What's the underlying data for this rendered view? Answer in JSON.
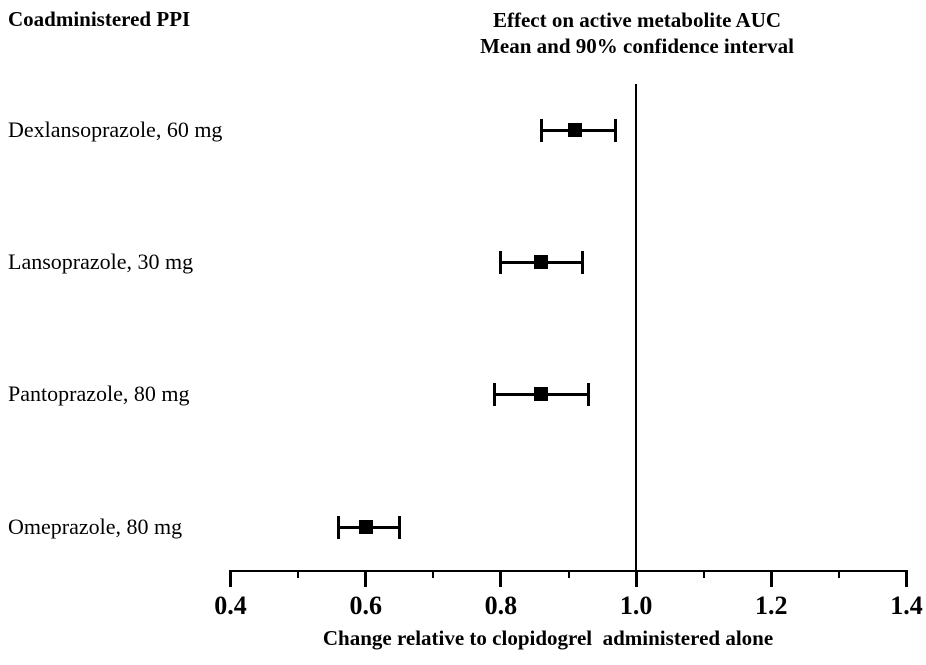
{
  "header": {
    "label": "Coadministered PPI"
  },
  "title": {
    "line1": "Effect on active metabolite AUC",
    "line2": "Mean and 90% confidence interval"
  },
  "colors": {
    "foreground": "#000000",
    "background": "#ffffff"
  },
  "chart_data": {
    "type": "forest",
    "categories": [
      "Dexlansoprazole, 60 mg",
      "Lansoprazole, 30 mg",
      "Pantoprazole, 80 mg",
      "Omeprazole, 80 mg"
    ],
    "series": [
      {
        "name": "Mean",
        "values": [
          0.91,
          0.86,
          0.86,
          0.6
        ]
      },
      {
        "name": "CI low (90%)",
        "values": [
          0.86,
          0.8,
          0.79,
          0.56
        ]
      },
      {
        "name": "CI high (90%)",
        "values": [
          0.97,
          0.92,
          0.93,
          0.65
        ]
      }
    ],
    "ci_level": "90%",
    "title": "Effect on active metabolite AUC",
    "subtitle": "Mean and 90% confidence interval",
    "xlabel": "Change relative to clopidogrel  administered alone",
    "ylabel": "",
    "xlim": [
      0.4,
      1.4
    ],
    "x_major_ticks": [
      0.4,
      0.6,
      0.8,
      1.0,
      1.2,
      1.4
    ],
    "x_minor_ticks": [
      0.5,
      0.7,
      0.9,
      1.1,
      1.3
    ],
    "reference_line": 1.0,
    "marker": "filled-square",
    "grid": false,
    "legend": "none"
  }
}
